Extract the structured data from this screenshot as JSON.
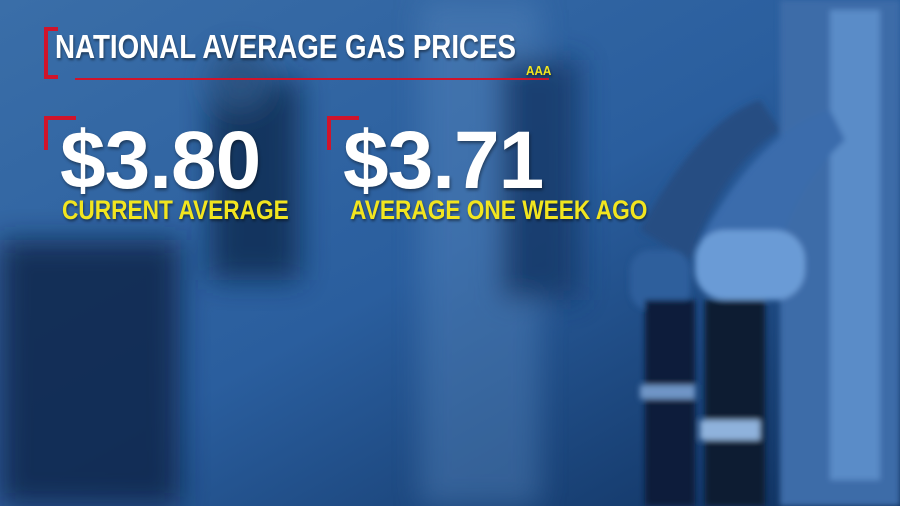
{
  "header": {
    "title": "NATIONAL AVERAGE GAS PRICES",
    "source": "AAA"
  },
  "stats": [
    {
      "value": "$3.80",
      "label": "CURRENT AVERAGE"
    },
    {
      "value": "$3.71",
      "label": "AVERAGE ONE WEEK AGO"
    }
  ],
  "colors": {
    "accent_red": "#d0142b",
    "label_yellow": "#f2e51f",
    "background_blue": "#1d4f8e"
  }
}
